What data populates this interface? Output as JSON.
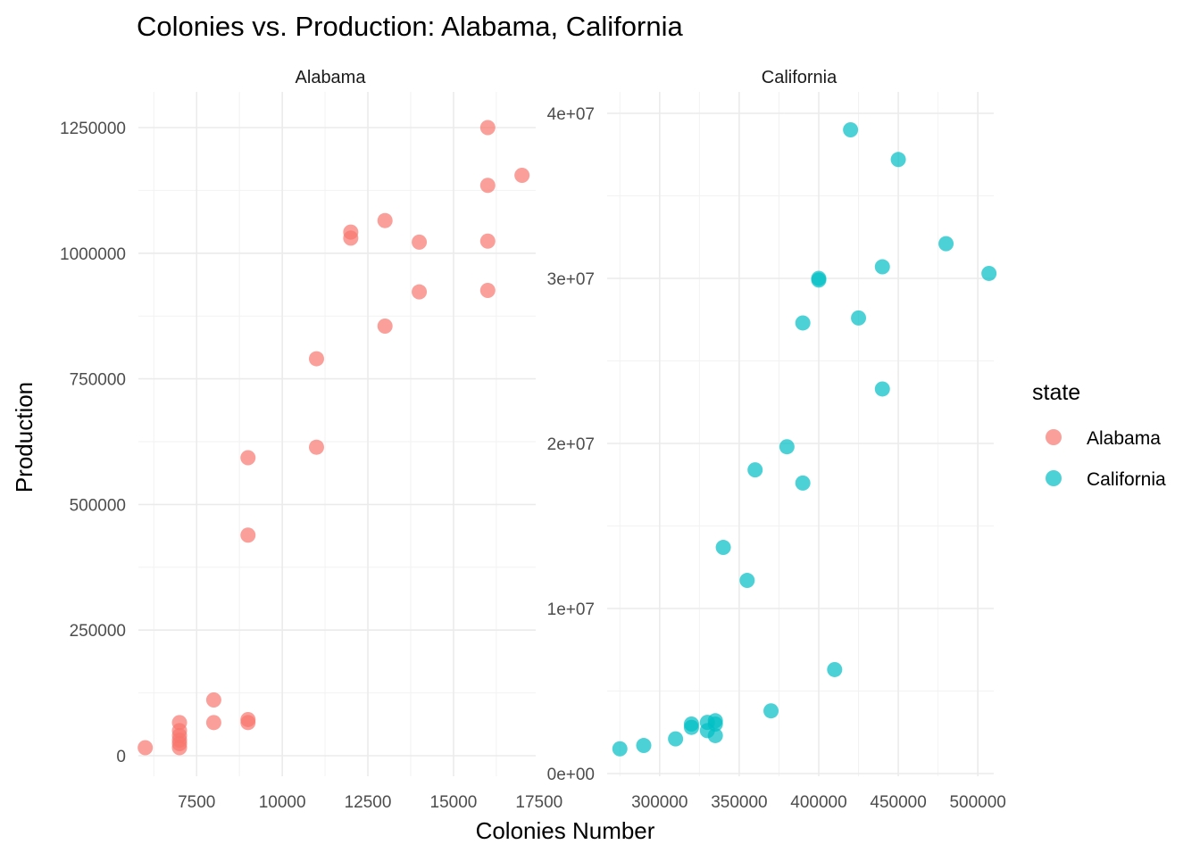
{
  "colors": {
    "Alabama": "#F8766D",
    "California": "#00BFC4",
    "grid_major": "#EBEBEB",
    "grid_minor": "#F2F2F2"
  },
  "chart_data": {
    "type": "scatter",
    "title": "Colonies vs. Production: Alabama, California",
    "xlabel": "Colonies Number",
    "ylabel": "Production",
    "legend": {
      "title": "state",
      "entries": [
        "Alabama",
        "California"
      ],
      "position": "right"
    },
    "grid": true,
    "point_alpha": 0.7,
    "facets": [
      {
        "name": "Alabama",
        "xlim": [
          5800,
          17400
        ],
        "ylim": [
          0,
          1250000
        ],
        "x_ticks": [
          7500,
          10000,
          12500,
          15000,
          17500
        ],
        "y_ticks": [
          0,
          250000,
          500000,
          750000,
          1000000,
          1250000
        ],
        "x_tick_labels": [
          "7500",
          "10000",
          "12500",
          "15000",
          "17500"
        ],
        "y_tick_labels": [
          "0",
          "250000",
          "500000",
          "750000",
          "1000000",
          "1250000"
        ],
        "series": [
          {
            "name": "Alabama",
            "x": [
              16000,
              17000,
              16000,
              13000,
              12000,
              12000,
              14000,
              16000,
              16000,
              14000,
              13000,
              11000,
              11000,
              9000,
              9000,
              8000,
              8000,
              9000,
              9000,
              7000,
              7000,
              7000,
              7000,
              7000,
              7000,
              6000
            ],
            "y": [
              1250000,
              1155000,
              1135000,
              1065000,
              1042000,
              1030000,
              1022000,
              1024000,
              926000,
              923000,
              855000,
              790000,
              614000,
              593000,
              439000,
              111000,
              66000,
              72000,
              66000,
              66000,
              50000,
              40000,
              31000,
              24000,
              16000,
              16000
            ]
          }
        ]
      },
      {
        "name": "California",
        "xlim": [
          267000,
          510000
        ],
        "ylim": [
          0,
          40000000
        ],
        "x_ticks": [
          300000,
          350000,
          400000,
          450000,
          500000
        ],
        "y_ticks": [
          0,
          10000000,
          20000000,
          30000000,
          40000000
        ],
        "x_tick_labels": [
          "300000",
          "350000",
          "400000",
          "450000",
          "500000"
        ],
        "y_tick_labels": [
          "0e+00",
          "1e+07",
          "2e+07",
          "3e+07",
          "4e+07"
        ],
        "series": [
          {
            "name": "California",
            "x": [
              420000,
              450000,
              480000,
              440000,
              507000,
              400000,
              400000,
              390000,
              425000,
              440000,
              380000,
              360000,
              390000,
              340000,
              355000,
              410000,
              370000,
              320000,
              320000,
              330000,
              335000,
              335000,
              330000,
              335000,
              310000,
              290000,
              275000
            ],
            "y": [
              39000000,
              37200000,
              32100000,
              30700000,
              30300000,
              30000000,
              29900000,
              27300000,
              27600000,
              23300000,
              19800000,
              18400000,
              17600000,
              13700000,
              11700000,
              6300000,
              3800000,
              3000000,
              2800000,
              3100000,
              3200000,
              3000000,
              2600000,
              2300000,
              2100000,
              1700000,
              1500000
            ]
          }
        ]
      }
    ]
  }
}
